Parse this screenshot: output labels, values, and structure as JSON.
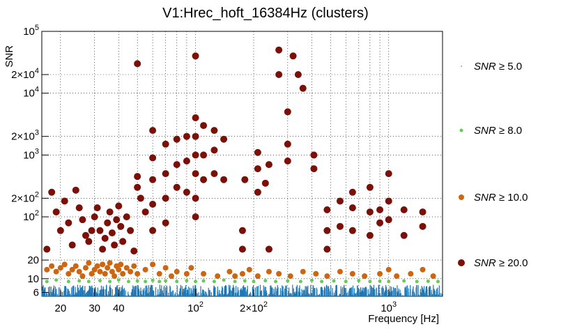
{
  "chart_data": {
    "type": "scatter",
    "title": "V1:Hrec_hoft_16384Hz (clusters)",
    "xlabel": "Frequency [Hz]",
    "ylabel": "SNR",
    "x_scale": "log",
    "y_scale": "log",
    "xlim": [
      16,
      1900
    ],
    "ylim": [
      5.2,
      100000
    ],
    "grid": true,
    "legend_position": "right",
    "x_ticks": [
      {
        "value": 20,
        "label": "20"
      },
      {
        "value": 30,
        "label": "30"
      },
      {
        "value": 40,
        "label": "40"
      },
      {
        "value": 100,
        "label": "10^2"
      },
      {
        "value": 200,
        "label": "2×10^2"
      },
      {
        "value": 1000,
        "label": "10^3"
      }
    ],
    "y_ticks": [
      {
        "value": 6,
        "label": "6"
      },
      {
        "value": 10,
        "label": "10"
      },
      {
        "value": 20,
        "label": "20"
      },
      {
        "value": 100,
        "label": "10^2"
      },
      {
        "value": 200,
        "label": "2×10^2"
      },
      {
        "value": 1000,
        "label": "10^3"
      },
      {
        "value": 2000,
        "label": "2×10^3"
      },
      {
        "value": 10000,
        "label": "10^4"
      },
      {
        "value": 20000,
        "label": "2×10^4"
      },
      {
        "value": 100000,
        "label": "10^5"
      }
    ],
    "series": [
      {
        "name": "SNR ≥ 5.0",
        "color": "#1f77b4",
        "marker": "dot",
        "points_description": "dense band across all frequencies",
        "snr_range": [
          5.2,
          8
        ],
        "freq_range": [
          16,
          1900
        ]
      },
      {
        "name": "SNR ≥ 8.0",
        "color": "#66cc55",
        "marker": "circle-small",
        "points": [
          [
            17,
            9
          ],
          [
            19,
            9.5
          ],
          [
            22,
            9
          ],
          [
            25,
            9.2
          ],
          [
            28,
            9
          ],
          [
            32,
            9.3
          ],
          [
            36,
            9
          ],
          [
            40,
            9.5
          ],
          [
            45,
            9
          ],
          [
            50,
            9.2
          ],
          [
            55,
            9
          ],
          [
            60,
            9.4
          ],
          [
            65,
            9
          ],
          [
            70,
            9.2
          ],
          [
            80,
            9
          ],
          [
            90,
            9.3
          ],
          [
            100,
            9
          ],
          [
            110,
            9.2
          ],
          [
            125,
            9
          ],
          [
            140,
            9.5
          ],
          [
            160,
            9
          ],
          [
            180,
            9.2
          ],
          [
            200,
            9
          ],
          [
            230,
            9.3
          ],
          [
            260,
            9
          ],
          [
            300,
            9.2
          ],
          [
            350,
            9
          ],
          [
            400,
            9.4
          ],
          [
            450,
            9
          ],
          [
            520,
            9.2
          ],
          [
            600,
            9
          ],
          [
            700,
            9.3
          ],
          [
            800,
            9
          ],
          [
            900,
            9.1
          ],
          [
            1000,
            9
          ],
          [
            1200,
            9.2
          ],
          [
            1400,
            9
          ],
          [
            1600,
            9.1
          ],
          [
            1800,
            9
          ]
        ]
      },
      {
        "name": "SNR ≥ 10.0",
        "color": "#cc6611",
        "marker": "circle-medium",
        "points": [
          [
            17,
            14
          ],
          [
            18,
            16
          ],
          [
            19,
            13
          ],
          [
            20,
            15
          ],
          [
            21,
            17
          ],
          [
            22,
            12
          ],
          [
            23,
            14
          ],
          [
            24,
            16
          ],
          [
            25,
            13
          ],
          [
            26,
            11
          ],
          [
            27,
            15
          ],
          [
            28,
            18
          ],
          [
            29,
            12
          ],
          [
            30,
            14
          ],
          [
            31,
            16
          ],
          [
            32,
            13
          ],
          [
            33,
            17
          ],
          [
            34,
            12
          ],
          [
            35,
            15
          ],
          [
            36,
            18
          ],
          [
            37,
            13
          ],
          [
            38,
            11
          ],
          [
            39,
            16
          ],
          [
            40,
            14
          ],
          [
            41,
            17
          ],
          [
            42,
            12
          ],
          [
            44,
            15
          ],
          [
            46,
            13
          ],
          [
            48,
            16
          ],
          [
            50,
            12
          ],
          [
            55,
            14
          ],
          [
            60,
            17
          ],
          [
            65,
            12
          ],
          [
            70,
            15
          ],
          [
            75,
            11
          ],
          [
            80,
            13
          ],
          [
            90,
            12
          ],
          [
            95,
            15
          ],
          [
            110,
            12
          ],
          [
            130,
            11
          ],
          [
            150,
            13
          ],
          [
            160,
            11
          ],
          [
            175,
            12
          ],
          [
            190,
            14
          ],
          [
            210,
            11
          ],
          [
            240,
            13
          ],
          [
            270,
            12
          ],
          [
            310,
            11
          ],
          [
            360,
            13
          ],
          [
            420,
            12
          ],
          [
            480,
            11
          ],
          [
            560,
            13
          ],
          [
            650,
            12
          ],
          [
            750,
            11
          ],
          [
            900,
            12
          ],
          [
            1000,
            14
          ],
          [
            1100,
            11
          ],
          [
            1300,
            12
          ],
          [
            1500,
            14
          ],
          [
            1700,
            11
          ]
        ]
      },
      {
        "name": "SNR ≥ 20.0",
        "color": "#7a1008",
        "marker": "circle-large",
        "points": [
          [
            17,
            30
          ],
          [
            18,
            250
          ],
          [
            19,
            120
          ],
          [
            20,
            60
          ],
          [
            21,
            180
          ],
          [
            22,
            80
          ],
          [
            23,
            35
          ],
          [
            24,
            270
          ],
          [
            25,
            140
          ],
          [
            26,
            90
          ],
          [
            27,
            50
          ],
          [
            28,
            40
          ],
          [
            29,
            60
          ],
          [
            30,
            100
          ],
          [
            31,
            140
          ],
          [
            32,
            60
          ],
          [
            33,
            30
          ],
          [
            34,
            45
          ],
          [
            35,
            80
          ],
          [
            36,
            120
          ],
          [
            37,
            55
          ],
          [
            38,
            35
          ],
          [
            39,
            90
          ],
          [
            40,
            150
          ],
          [
            41,
            70
          ],
          [
            42,
            40
          ],
          [
            44,
            100
          ],
          [
            46,
            60
          ],
          [
            48,
            28
          ],
          [
            50,
            30000
          ],
          [
            50,
            300
          ],
          [
            50,
            450
          ],
          [
            52,
            200
          ],
          [
            55,
            120
          ],
          [
            60,
            2500
          ],
          [
            60,
            900
          ],
          [
            60,
            400
          ],
          [
            60,
            160
          ],
          [
            60,
            60
          ],
          [
            70,
            1500
          ],
          [
            70,
            500
          ],
          [
            70,
            200
          ],
          [
            70,
            80
          ],
          [
            80,
            1800
          ],
          [
            80,
            700
          ],
          [
            80,
            300
          ],
          [
            90,
            2000
          ],
          [
            90,
            800
          ],
          [
            90,
            250
          ],
          [
            100,
            40000
          ],
          [
            100,
            4000
          ],
          [
            100,
            2000
          ],
          [
            100,
            1000
          ],
          [
            100,
            500
          ],
          [
            100,
            200
          ],
          [
            100,
            100
          ],
          [
            110,
            3000
          ],
          [
            110,
            1000
          ],
          [
            110,
            400
          ],
          [
            125,
            2500
          ],
          [
            125,
            1200
          ],
          [
            125,
            500
          ],
          [
            140,
            1800
          ],
          [
            140,
            400
          ],
          [
            175,
            30
          ],
          [
            175,
            60
          ],
          [
            180,
            400
          ],
          [
            210,
            1100
          ],
          [
            210,
            600
          ],
          [
            210,
            250
          ],
          [
            230,
            350
          ],
          [
            240,
            700
          ],
          [
            240,
            30
          ],
          [
            270,
            50000
          ],
          [
            270,
            20000
          ],
          [
            300,
            5000
          ],
          [
            300,
            1500
          ],
          [
            300,
            800
          ],
          [
            320,
            40000
          ],
          [
            340,
            20000
          ],
          [
            360,
            12000
          ],
          [
            410,
            1000
          ],
          [
            410,
            600
          ],
          [
            480,
            130
          ],
          [
            480,
            60
          ],
          [
            480,
            30
          ],
          [
            560,
            180
          ],
          [
            560,
            70
          ],
          [
            650,
            250
          ],
          [
            650,
            140
          ],
          [
            650,
            60
          ],
          [
            800,
            300
          ],
          [
            800,
            120
          ],
          [
            800,
            50
          ],
          [
            900,
            130
          ],
          [
            900,
            80
          ],
          [
            1000,
            500
          ],
          [
            1000,
            180
          ],
          [
            1000,
            90
          ],
          [
            1200,
            130
          ],
          [
            1200,
            50
          ],
          [
            1500,
            120
          ],
          [
            1500,
            70
          ]
        ]
      }
    ]
  }
}
